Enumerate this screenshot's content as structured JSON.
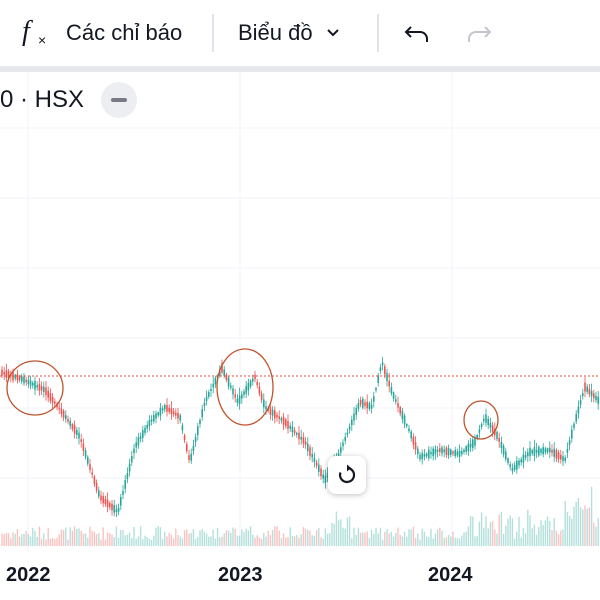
{
  "toolbar": {
    "indicators_label": "Các chỉ báo",
    "chart_type_label": "Biểu đồ"
  },
  "symbol": {
    "text": "0 · HSX"
  },
  "x_axis": {
    "labels": [
      "2022",
      "2023",
      "2024"
    ]
  },
  "colors": {
    "up": "#26a69a",
    "down": "#ef5350",
    "price_line": "#e74c3c",
    "annotation_circle": "#c0532b",
    "grid": "#f0f3fa"
  },
  "chart_data": {
    "type": "candlestick",
    "reference_price_line": "dashed red horizontal",
    "x_tick_labels": [
      "2022",
      "2023",
      "2024"
    ]
  }
}
